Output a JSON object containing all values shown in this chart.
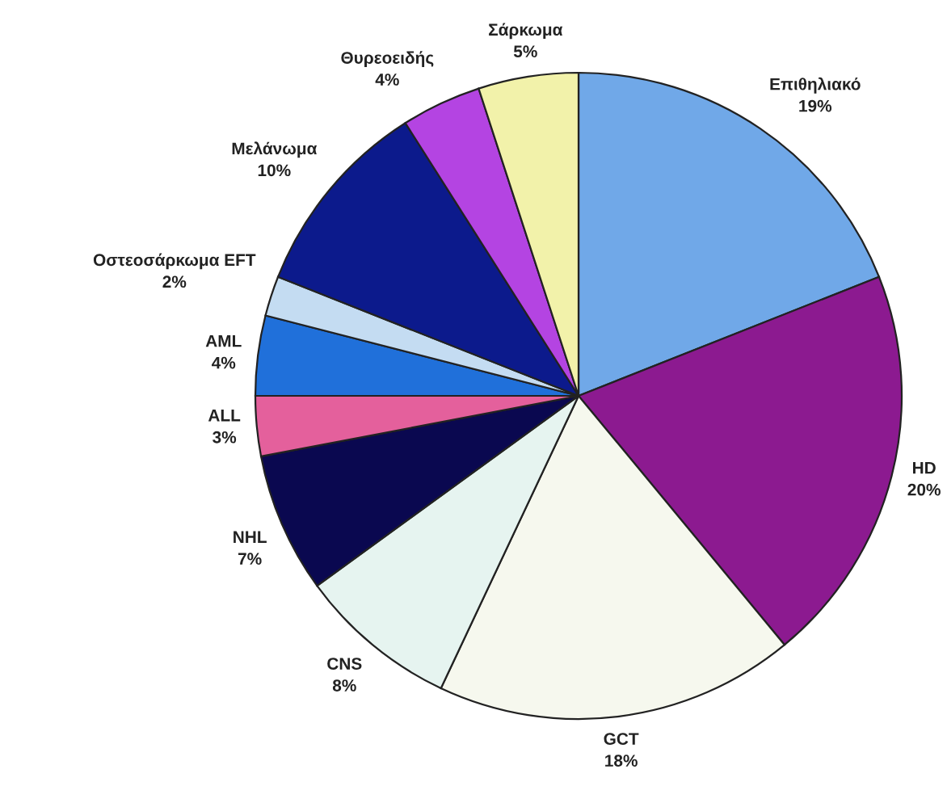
{
  "chart_data": {
    "type": "pie",
    "categories": [
      "Επιθηλιακό",
      "HD",
      "GCT",
      "CNS",
      "NHL",
      "ALL",
      "AML",
      "Οστεοσάρκωμα EFT",
      "Μελάνωμα",
      "Θυρεοειδής",
      "Σάρκωμα"
    ],
    "values": [
      19,
      20,
      18,
      8,
      7,
      3,
      4,
      2,
      10,
      4,
      5
    ],
    "value_labels": [
      "19%",
      "20%",
      "18%",
      "8%",
      "7%",
      "3%",
      "4%",
      "2%",
      "10%",
      "4%",
      "5%"
    ],
    "colors": [
      "#70a8e8",
      "#8c1a90",
      "#f6f8ee",
      "#e6f4f0",
      "#0a0850",
      "#e4609c",
      "#2070da",
      "#c4dcf2",
      "#0c1a8c",
      "#b444e2",
      "#f2f2aa"
    ]
  }
}
